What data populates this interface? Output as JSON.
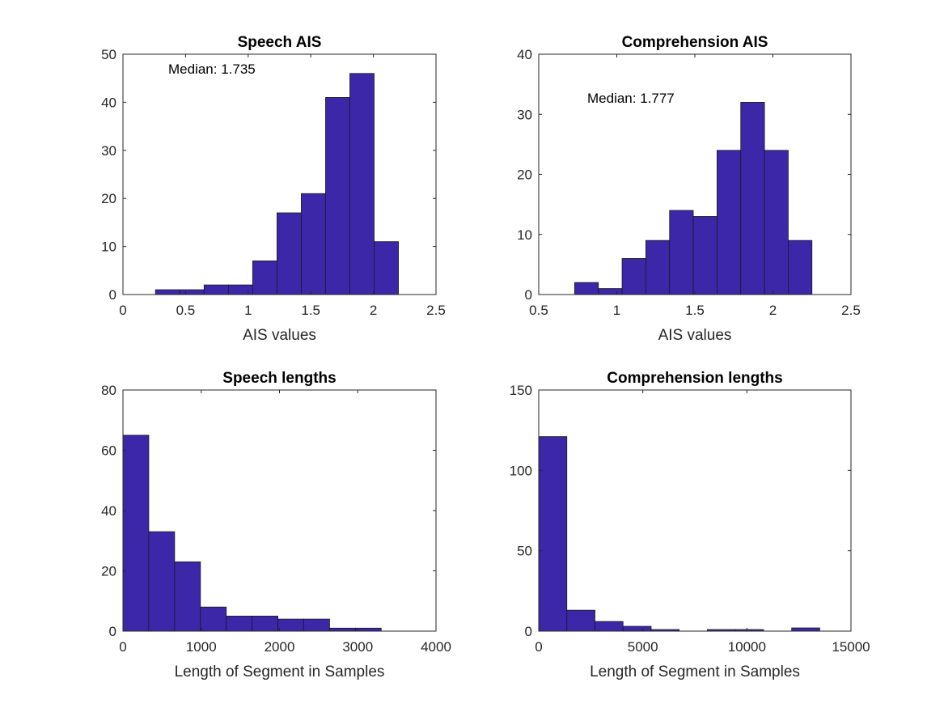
{
  "chart_data": [
    {
      "type": "bar",
      "title": "Speech AIS",
      "xlabel": "AIS values",
      "ylabel": "",
      "xlim": [
        0,
        2.5
      ],
      "ylim": [
        0,
        50
      ],
      "xticks": [
        0,
        0.5,
        1,
        1.5,
        2,
        2.5
      ],
      "xtick_labels": [
        "0",
        "0.5",
        "1",
        "1.5",
        "2",
        "2.5"
      ],
      "yticks": [
        0,
        10,
        20,
        30,
        40,
        50
      ],
      "ytick_labels": [
        "0",
        "10",
        "20",
        "30",
        "40",
        "50"
      ],
      "bin_edges": [
        0.26,
        0.454,
        0.648,
        0.842,
        1.036,
        1.23,
        1.424,
        1.618,
        1.812,
        2.006,
        2.2
      ],
      "values": [
        1,
        1,
        2,
        2,
        7,
        17,
        21,
        41,
        46,
        11
      ],
      "annotation": "Median: 1.735",
      "grid": false
    },
    {
      "type": "bar",
      "title": "Comprehension AIS",
      "xlabel": "AIS values",
      "ylabel": "",
      "xlim": [
        0.5,
        2.5
      ],
      "ylim": [
        0,
        40
      ],
      "xticks": [
        0.5,
        1,
        1.5,
        2,
        2.5
      ],
      "xtick_labels": [
        "0.5",
        "1",
        "1.5",
        "2",
        "2.5"
      ],
      "yticks": [
        0,
        10,
        20,
        30,
        40
      ],
      "ytick_labels": [
        "0",
        "10",
        "20",
        "30",
        "40"
      ],
      "bin_edges": [
        0.73,
        0.882,
        1.034,
        1.186,
        1.338,
        1.49,
        1.642,
        1.794,
        1.946,
        2.098,
        2.25
      ],
      "values": [
        2,
        1,
        6,
        9,
        14,
        13,
        24,
        32,
        24,
        9
      ],
      "annotation": "Median: 1.777",
      "grid": false
    },
    {
      "type": "bar",
      "title": "Speech lengths",
      "xlabel": "Length of Segment in Samples",
      "ylabel": "",
      "xlim": [
        0,
        4000
      ],
      "ylim": [
        0,
        80
      ],
      "xticks": [
        0,
        1000,
        2000,
        3000,
        4000
      ],
      "xtick_labels": [
        "0",
        "1000",
        "2000",
        "3000",
        "4000"
      ],
      "yticks": [
        0,
        20,
        40,
        60,
        80
      ],
      "ytick_labels": [
        "0",
        "20",
        "40",
        "60",
        "80"
      ],
      "bin_edges": [
        0,
        330,
        660,
        990,
        1320,
        1650,
        1980,
        2310,
        2640,
        2970,
        3300
      ],
      "values": [
        65,
        33,
        23,
        8,
        5,
        5,
        4,
        4,
        1,
        1
      ],
      "annotation": "",
      "grid": false
    },
    {
      "type": "bar",
      "title": "Comprehension lengths",
      "xlabel": "Length of Segment in Samples",
      "ylabel": "",
      "xlim": [
        0,
        15000
      ],
      "ylim": [
        0,
        150
      ],
      "xticks": [
        0,
        5000,
        10000,
        15000
      ],
      "xtick_labels": [
        "0",
        "5000",
        "10000",
        "15000"
      ],
      "yticks": [
        0,
        50,
        100,
        150
      ],
      "ytick_labels": [
        "0",
        "50",
        "100",
        "150"
      ],
      "bin_edges": [
        0,
        1350,
        2700,
        4050,
        5400,
        6750,
        8100,
        9450,
        10800,
        12150,
        13500
      ],
      "values": [
        121,
        13,
        6,
        3,
        1,
        0,
        1,
        1,
        0,
        2
      ],
      "annotation": "",
      "grid": false
    }
  ],
  "colors": {
    "bar_fill": "#3c27a8",
    "bar_edge": "#1a1a1a",
    "axis": "#262626"
  }
}
